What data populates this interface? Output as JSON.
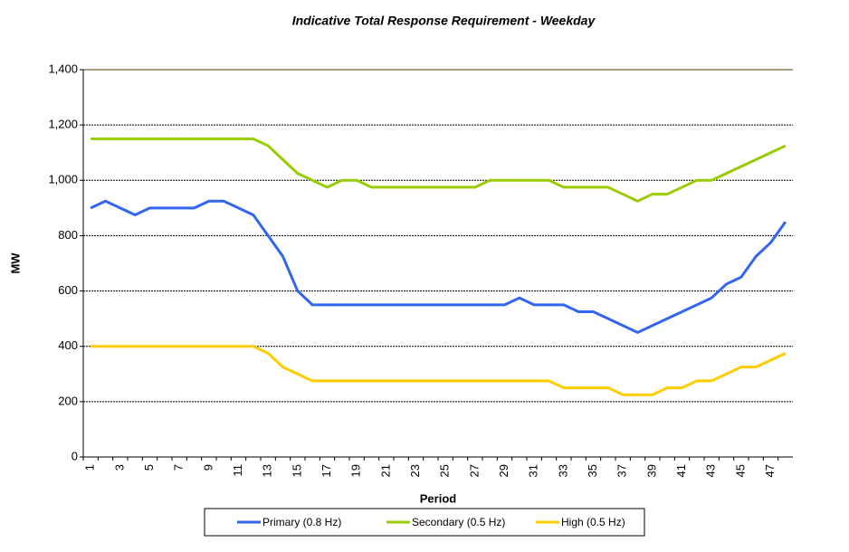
{
  "chart_data": {
    "type": "line",
    "title": "Indicative Total Response Requirement - Weekday",
    "x_label": "Period",
    "y_label": "MW",
    "categories": [
      "1",
      null,
      "3",
      null,
      "5",
      null,
      "7",
      null,
      "9",
      null,
      "11",
      null,
      "13",
      null,
      "15",
      null,
      "17",
      null,
      "19",
      null,
      "21",
      null,
      "23",
      null,
      "25",
      null,
      "27",
      null,
      "29",
      null,
      "31",
      null,
      "33",
      null,
      "35",
      null,
      "37",
      null,
      "39",
      null,
      "41",
      null,
      "43",
      null,
      "45",
      null,
      "47",
      null
    ],
    "series": [
      {
        "name": "Primary (0.8 Hz)",
        "color": "#3366ee",
        "values": [
          900,
          925,
          900,
          875,
          900,
          900,
          900,
          900,
          925,
          925,
          900,
          875,
          800,
          725,
          600,
          550,
          550,
          550,
          550,
          550,
          550,
          550,
          550,
          550,
          550,
          550,
          550,
          550,
          550,
          575,
          550,
          550,
          550,
          525,
          525,
          500,
          475,
          450,
          475,
          500,
          525,
          550,
          575,
          625,
          650,
          725,
          775,
          850
        ]
      },
      {
        "name": "Secondary (0.5 Hz)",
        "color": "#99cc00",
        "values": [
          1150,
          1150,
          1150,
          1150,
          1150,
          1150,
          1150,
          1150,
          1150,
          1150,
          1150,
          1150,
          1125,
          1075,
          1025,
          1000,
          975,
          1000,
          1000,
          975,
          975,
          975,
          975,
          975,
          975,
          975,
          975,
          1000,
          1000,
          1000,
          1000,
          1000,
          975,
          975,
          975,
          975,
          950,
          925,
          950,
          950,
          975,
          1000,
          1000,
          1025,
          1050,
          1075,
          1100,
          1125
        ]
      },
      {
        "name": "High (0.5 Hz)",
        "color": "#ffcc00",
        "values": [
          400,
          400,
          400,
          400,
          400,
          400,
          400,
          400,
          400,
          400,
          400,
          400,
          375,
          325,
          300,
          275,
          275,
          275,
          275,
          275,
          275,
          275,
          275,
          275,
          275,
          275,
          275,
          275,
          275,
          275,
          275,
          275,
          250,
          250,
          250,
          250,
          225,
          225,
          225,
          250,
          250,
          275,
          275,
          300,
          325,
          325,
          350,
          375
        ]
      }
    ],
    "ylim": [
      0,
      1400
    ],
    "yticks": [
      0,
      200,
      400,
      600,
      800,
      {
        "value": 1000,
        "label": "1,000"
      },
      {
        "value": 1200,
        "label": "1,200"
      },
      {
        "value": 1400,
        "label": "1,400"
      }
    ],
    "grid": true,
    "legend": "bottom"
  }
}
